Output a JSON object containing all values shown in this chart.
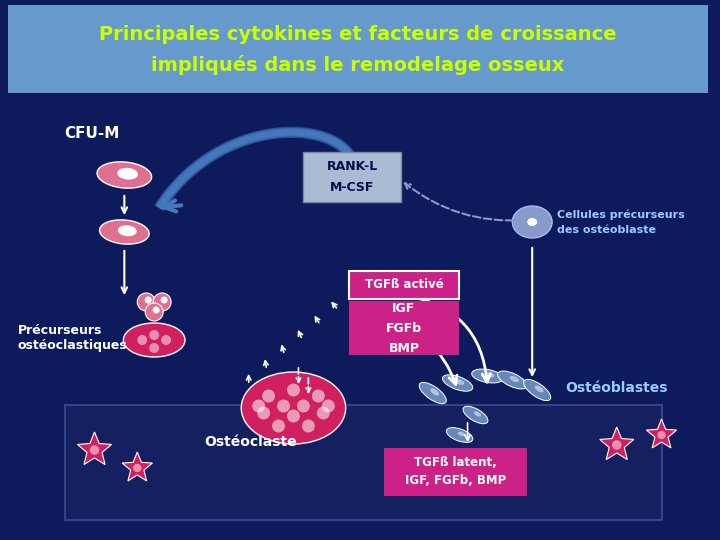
{
  "title_line1": "Principales cytokines et facteurs de croissance",
  "title_line2": "impliqués dans le remodelage osseux",
  "title_color": "#ccff00",
  "title_bg": "#6699cc",
  "bg_color": "#0d1a5c",
  "bottom_bar_color": "#152060",
  "cfu_m_label": "CFU-M",
  "rankl_mcsf_label": "RANK-L\nM-CSF",
  "rankl_box_bg": "#aabbd4",
  "tgfb_active_label": "TGFß activé",
  "tgfb_active_bg": "#cc2288",
  "igf_label": "IGF\nFGFb\nBMP",
  "igf_box_bg": "#cc2288",
  "precurseurs_label": "Précurseurs\nostéoclastiques",
  "osteoclaste_label": "Ostéoclaste",
  "osteoblastes_label": "Ostéoblastes",
  "cellules_label1": "Cellules précurseurs",
  "cellules_label2": "des ostéoblaste",
  "tgfb_latent_label": "TGFß latent,\nIGF, FGFb, BMP",
  "tgfb_latent_bg": "#cc2288",
  "white_text": "#ffffff",
  "yellow_text": "#ccff00",
  "blue_text": "#99ccff",
  "cell_pink": "#e07090",
  "cell_deep_pink": "#d02060",
  "cell_precursor_blue": "#8899cc"
}
